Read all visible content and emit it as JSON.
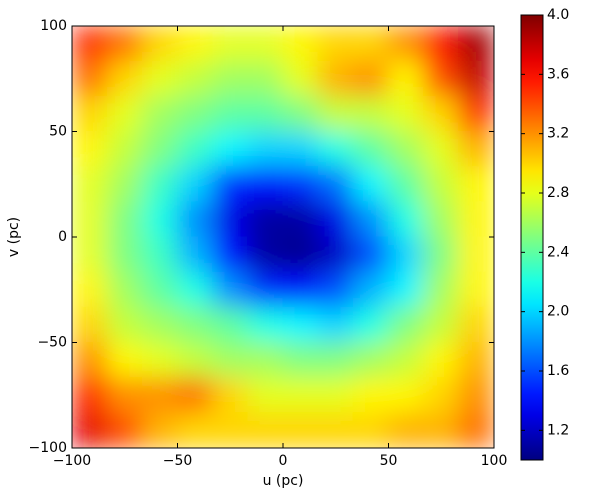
{
  "chart_data": {
    "type": "heatmap",
    "x_label": "u (pc)",
    "y_label": "v (pc)",
    "xlim": [
      -100,
      100
    ],
    "ylim": [
      -100,
      100
    ],
    "xticks": [
      {
        "value": -100,
        "label": "−100"
      },
      {
        "value": -50,
        "label": "−50"
      },
      0,
      50,
      100
    ],
    "yticks": [
      {
        "value": -100,
        "label": "−100"
      },
      {
        "value": -50,
        "label": "−50"
      },
      0,
      50,
      100
    ],
    "colormap": "jet",
    "zlim": [
      1,
      4
    ],
    "zticks": [
      1.2,
      1.6,
      {
        "value": 2,
        "label": "2.0"
      },
      2.4,
      2.8,
      3.2,
      3.6,
      {
        "value": 4,
        "label": "4.0"
      }
    ],
    "values": [
      [
        3.5,
        3.3,
        3.0,
        2.9,
        2.8,
        2.8,
        2.9,
        3.0,
        3.0,
        3.2,
        3.6,
        3.9
      ],
      [
        3.3,
        3.0,
        2.8,
        2.7,
        2.6,
        2.6,
        2.8,
        3.1,
        3.2,
        2.9,
        3.4,
        3.8
      ],
      [
        3.0,
        2.8,
        2.6,
        2.5,
        2.4,
        2.4,
        2.5,
        2.7,
        2.7,
        2.8,
        3.0,
        3.5
      ],
      [
        2.9,
        2.7,
        2.5,
        2.3,
        2.1,
        2.0,
        2.0,
        2.2,
        2.4,
        2.6,
        2.8,
        3.1
      ],
      [
        2.8,
        2.6,
        2.3,
        2.0,
        1.5,
        1.4,
        1.5,
        1.7,
        2.1,
        2.4,
        2.7,
        2.9
      ],
      [
        2.8,
        2.5,
        2.2,
        1.8,
        1.3,
        1.1,
        1.1,
        1.3,
        1.8,
        2.2,
        2.6,
        2.9
      ],
      [
        2.8,
        2.5,
        2.3,
        1.9,
        1.4,
        1.1,
        1.05,
        1.2,
        1.6,
        2.0,
        2.5,
        2.9
      ],
      [
        2.9,
        2.6,
        2.4,
        2.2,
        1.8,
        1.5,
        1.4,
        1.6,
        1.9,
        2.1,
        2.6,
        2.9
      ],
      [
        3.0,
        2.7,
        2.6,
        2.5,
        2.4,
        2.2,
        2.1,
        2.0,
        2.2,
        2.5,
        2.7,
        3.0
      ],
      [
        3.2,
        2.9,
        2.8,
        2.7,
        2.6,
        2.6,
        2.5,
        2.5,
        2.6,
        2.7,
        2.9,
        3.1
      ],
      [
        3.5,
        3.2,
        3.2,
        3.3,
        3.0,
        2.8,
        2.8,
        2.8,
        2.9,
        2.9,
        3.0,
        3.2
      ],
      [
        3.7,
        3.4,
        3.1,
        3.0,
        3.0,
        3.0,
        3.0,
        3.0,
        3.0,
        3.1,
        3.1,
        3.3
      ]
    ]
  }
}
